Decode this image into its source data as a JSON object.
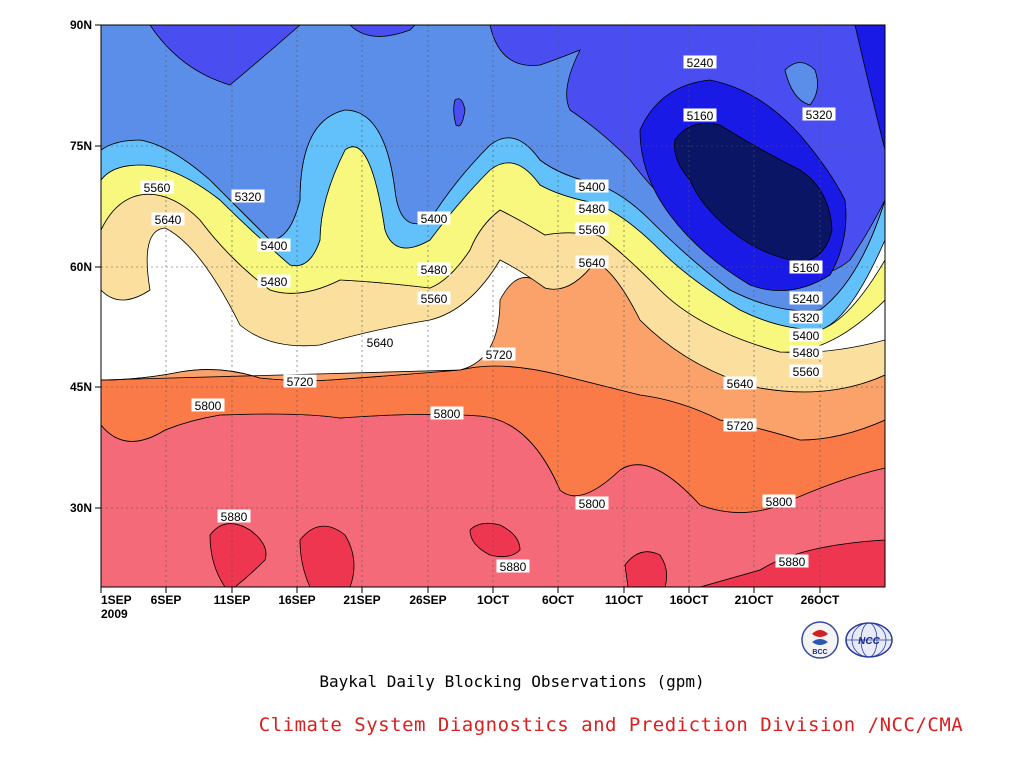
{
  "chart_data": {
    "type": "contour",
    "title": "Baykal Daily Blocking Observations (gpm)",
    "credit": "Climate System Diagnostics and Prediction Division /NCC/CMA",
    "x_ticks": [
      "1SEP",
      "6SEP",
      "11SEP",
      "16SEP",
      "21SEP",
      "26SEP",
      "1OCT",
      "6OCT",
      "11OCT",
      "16OCT",
      "21OCT",
      "26OCT"
    ],
    "x_tick_sub": "2009",
    "y_ticks": [
      "90N",
      "75N",
      "60N",
      "45N",
      "30N"
    ],
    "y_range": [
      20,
      90
    ],
    "levels": [
      5160,
      5240,
      5320,
      5400,
      5480,
      5560,
      5640,
      5720,
      5800,
      5880
    ],
    "fill_colors": [
      "#0a1565",
      "#1a1ae6",
      "#4a4ef0",
      "#5a8ee8",
      "#62c0fa",
      "#f9f87e",
      "#fadf9e",
      "#fba26a",
      "#fa7a48",
      "#f46a78",
      "#ef3650"
    ],
    "contour_labels": [
      {
        "text": "5560"
      },
      {
        "text": "5640"
      },
      {
        "text": "5320"
      },
      {
        "text": "5400"
      },
      {
        "text": "5480"
      },
      {
        "text": "5640"
      },
      {
        "text": "5720"
      },
      {
        "text": "5800"
      },
      {
        "text": "5880"
      },
      {
        "text": "5400"
      },
      {
        "text": "5480"
      },
      {
        "text": "5560"
      },
      {
        "text": "5800"
      },
      {
        "text": "5720"
      },
      {
        "text": "5880"
      },
      {
        "text": "5400"
      },
      {
        "text": "5480"
      },
      {
        "text": "5560"
      },
      {
        "text": "5640"
      },
      {
        "text": "5800"
      },
      {
        "text": "5240"
      },
      {
        "text": "5160"
      },
      {
        "text": "5320"
      },
      {
        "text": "5160"
      },
      {
        "text": "5240"
      },
      {
        "text": "5320"
      },
      {
        "text": "5400"
      },
      {
        "text": "5480"
      },
      {
        "text": "5560"
      },
      {
        "text": "5640"
      },
      {
        "text": "5720"
      },
      {
        "text": "5800"
      },
      {
        "text": "5880"
      }
    ]
  },
  "logos": [
    {
      "name": "bcc-logo",
      "text": "BCC"
    },
    {
      "name": "ncc-logo",
      "text": "NCC"
    }
  ]
}
